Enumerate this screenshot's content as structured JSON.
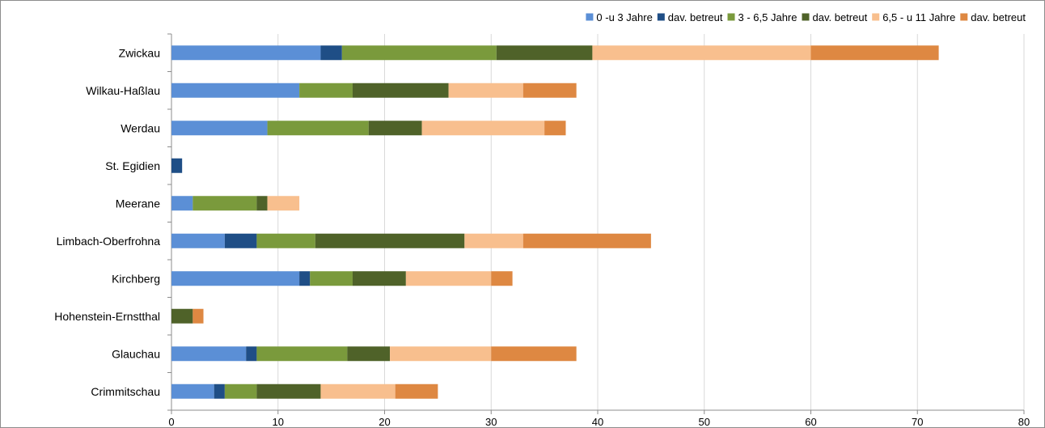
{
  "chart_data": {
    "type": "bar",
    "orientation": "horizontal",
    "stacked": true,
    "categories": [
      "Zwickau",
      "Wilkau-Haßlau",
      "Werdau",
      "St. Egidien",
      "Meerane",
      "Limbach-Oberfrohna",
      "Kirchberg",
      "Hohenstein-Ernstthal",
      "Glauchau",
      "Crimmitschau"
    ],
    "series": [
      {
        "name": "0 -u 3 Jahre",
        "color": "#5b8fd6",
        "values": [
          14,
          12,
          9,
          0,
          2,
          5,
          12,
          0,
          7,
          4
        ]
      },
      {
        "name": "dav. betreut",
        "color": "#1f4e86",
        "values": [
          2,
          0,
          0,
          1,
          0,
          3,
          1,
          0,
          1,
          1
        ]
      },
      {
        "name": "3 - 6,5 Jahre",
        "color": "#7a9a3c",
        "values": [
          14.5,
          5,
          9.5,
          0,
          6,
          5.5,
          4,
          0,
          8.5,
          3
        ]
      },
      {
        "name": "dav. betreut",
        "color": "#4f6229",
        "values": [
          9,
          9,
          5,
          0,
          1,
          14,
          5,
          2,
          4,
          6
        ]
      },
      {
        "name": "6,5 - u 11 Jahre",
        "color": "#f8bf8e",
        "values": [
          20.5,
          7,
          11.5,
          0,
          3,
          5.5,
          8,
          0,
          9.5,
          7
        ]
      },
      {
        "name": "dav. betreut",
        "color": "#de8842",
        "values": [
          12,
          5,
          2,
          0,
          0,
          12,
          2,
          1,
          8,
          4
        ]
      }
    ],
    "xlim": [
      0,
      80
    ],
    "xticks": [
      "0",
      "10",
      "20",
      "30",
      "40",
      "50",
      "60",
      "70",
      "80"
    ],
    "grid": true,
    "legend_position": "top-right"
  }
}
